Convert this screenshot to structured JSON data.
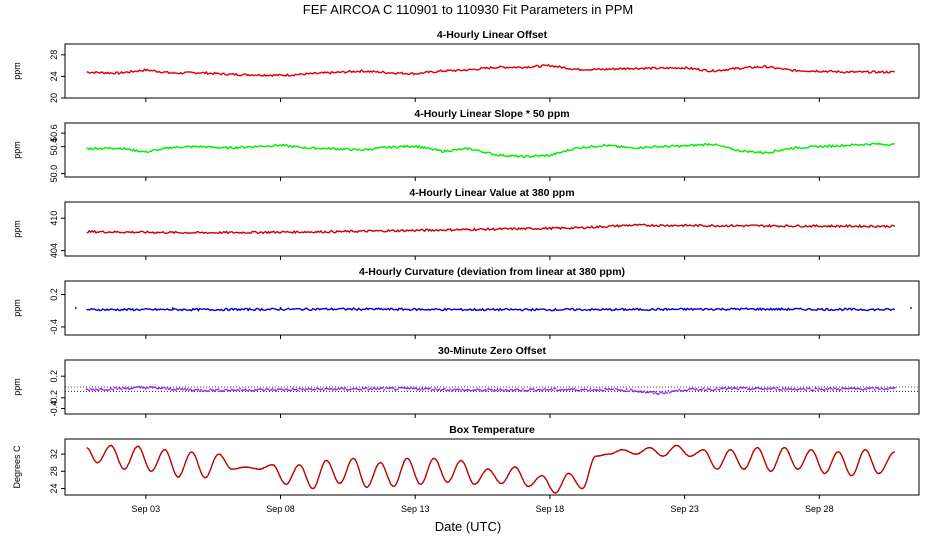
{
  "title": "FEF   AIRCOA C   110901 to 110930   Fit Parameters in PPM",
  "xlabel": "Date (UTC)",
  "chart_data": [
    {
      "type": "line",
      "title": "4-Hourly Linear Offset",
      "ylabel": "ppm",
      "ylim": [
        20,
        30
      ],
      "yticks": [
        "20",
        "24",
        "28"
      ],
      "color": "#dd0000",
      "xlim_days": [
        0,
        31.7
      ],
      "series": [
        {
          "name": "offset",
          "x": [
            0.8,
            2,
            3,
            4,
            5,
            6,
            8,
            10,
            11,
            12,
            13,
            14,
            15,
            16,
            17,
            18,
            19,
            20,
            21,
            22,
            23,
            24,
            25,
            26,
            27,
            28,
            29,
            30,
            30.8
          ],
          "values": [
            24.8,
            24.6,
            25.2,
            24.6,
            24.7,
            24.4,
            24.2,
            24.7,
            25.0,
            24.7,
            24.5,
            25.0,
            25.2,
            25.7,
            25.7,
            26.0,
            25.3,
            25.3,
            25.5,
            25.5,
            25.6,
            25.0,
            25.5,
            25.8,
            25.1,
            25.0,
            24.8,
            24.8,
            24.8
          ]
        }
      ]
    },
    {
      "type": "line",
      "title": "4-Hourly Linear Slope * 50 ppm",
      "ylabel": "ppm",
      "ylim": [
        49.95,
        50.75
      ],
      "yticks": [
        "50.0",
        "50.4",
        "50.6"
      ],
      "color": "#00ee00",
      "xlim_days": [
        0,
        31.7
      ],
      "series": [
        {
          "name": "slope",
          "x": [
            0.8,
            2,
            3,
            4,
            5,
            6,
            7,
            8,
            9,
            10,
            11,
            12,
            13,
            14,
            15,
            16,
            17,
            18,
            19,
            20,
            21,
            22,
            23,
            24,
            25,
            26,
            27,
            28,
            29,
            30,
            30.8
          ],
          "values": [
            50.37,
            50.38,
            50.32,
            50.39,
            50.4,
            50.38,
            50.4,
            50.42,
            50.38,
            50.37,
            50.35,
            50.39,
            50.41,
            50.33,
            50.37,
            50.28,
            50.25,
            50.27,
            50.38,
            50.42,
            50.38,
            50.4,
            50.41,
            50.44,
            50.34,
            50.31,
            50.38,
            50.4,
            50.42,
            50.44,
            50.43
          ]
        }
      ]
    },
    {
      "type": "line",
      "title": "4-Hourly Linear Value at 380 ppm",
      "ylabel": "ppm",
      "ylim": [
        403,
        413
      ],
      "yticks": [
        "404",
        "410"
      ],
      "color": "#cc0000",
      "xlim_days": [
        0,
        31.7
      ],
      "series": [
        {
          "name": "value380",
          "x": [
            0.8,
            5,
            10,
            15,
            19,
            21,
            25,
            30.8
          ],
          "values": [
            407.5,
            407.3,
            407.5,
            407.9,
            408.2,
            408.7,
            408.6,
            408.5
          ]
        }
      ]
    },
    {
      "type": "line",
      "title": "4-Hourly Curvature (deviation from linear at 380 ppm)",
      "ylabel": "ppm",
      "ylim": [
        -0.55,
        0.45
      ],
      "yticks": [
        "-0.4",
        "0.2"
      ],
      "color": "#0000cc",
      "xlim_days": [
        0,
        31.7
      ],
      "series": [
        {
          "name": "curvature",
          "x": [
            0.8,
            5,
            10,
            15,
            20,
            25,
            30.8
          ],
          "values": [
            -0.08,
            -0.08,
            -0.07,
            -0.08,
            -0.08,
            -0.07,
            -0.08
          ]
        }
      ]
    },
    {
      "type": "scatter",
      "title": "30-Minute Zero Offset",
      "ylabel": "ppm",
      "ylim": [
        -0.5,
        0.5
      ],
      "yticks": [
        "-0.4",
        "-0.2",
        "0.2"
      ],
      "reference_lines": [
        0.0,
        -0.08
      ],
      "color": "#9922ee",
      "xlim_days": [
        0,
        31.7
      ],
      "series": [
        {
          "name": "zero_offset",
          "x": [
            0.8,
            2,
            3,
            5,
            8,
            10,
            13,
            15,
            18,
            20,
            21,
            22,
            23,
            25,
            28,
            30.8
          ],
          "values": [
            -0.05,
            -0.03,
            -0.01,
            -0.06,
            -0.05,
            -0.04,
            -0.03,
            -0.06,
            -0.05,
            -0.05,
            -0.06,
            -0.12,
            -0.05,
            -0.03,
            -0.04,
            -0.03
          ]
        }
      ]
    },
    {
      "type": "line",
      "title": "Box Temperature",
      "ylabel": "Degrees C",
      "ylim": [
        22.5,
        35.5
      ],
      "yticks": [
        "24",
        "28",
        "32"
      ],
      "color": "#bb0000",
      "xlim_days": [
        0,
        31.7
      ],
      "series": [
        {
          "name": "box_temp",
          "x": [
            0.8,
            1.2,
            1.7,
            2.2,
            2.7,
            3.2,
            3.7,
            4.2,
            4.7,
            5.2,
            5.7,
            6.2,
            6.7,
            7.2,
            7.7,
            8.2,
            8.7,
            9.2,
            9.7,
            10.2,
            10.7,
            11.2,
            11.7,
            12.2,
            12.7,
            13.2,
            13.7,
            14.2,
            14.7,
            15.2,
            15.7,
            16.2,
            16.7,
            17.2,
            17.7,
            18.2,
            18.7,
            19.2,
            19.7,
            20.2,
            20.7,
            21.2,
            21.7,
            22.2,
            22.7,
            23.2,
            23.7,
            24.2,
            24.7,
            25.2,
            25.7,
            26.2,
            26.7,
            27.2,
            27.7,
            28.2,
            28.7,
            29.2,
            29.7,
            30.2,
            30.8
          ],
          "values": [
            33.5,
            30.0,
            34.0,
            28.5,
            33.8,
            28.0,
            33.0,
            26.7,
            32.5,
            26.5,
            32.0,
            28.5,
            29.0,
            28.5,
            29.5,
            25.0,
            29.5,
            24.0,
            30.5,
            25.2,
            31.0,
            24.3,
            30.0,
            24.5,
            31.0,
            25.0,
            31.0,
            25.5,
            30.5,
            25.0,
            28.5,
            25.2,
            29.0,
            24.5,
            27.0,
            23.0,
            27.5,
            24.0,
            31.5,
            32.0,
            33.0,
            32.0,
            33.5,
            31.5,
            34.0,
            31.5,
            33.0,
            28.5,
            33.0,
            28.5,
            33.5,
            28.0,
            33.5,
            28.5,
            33.0,
            27.5,
            32.5,
            27.0,
            33.0,
            27.5,
            32.5
          ]
        }
      ]
    }
  ],
  "x_ticks": [
    {
      "label": "Sep 03",
      "day": 3
    },
    {
      "label": "Sep 08",
      "day": 8
    },
    {
      "label": "Sep 13",
      "day": 13
    },
    {
      "label": "Sep 18",
      "day": 18
    },
    {
      "label": "Sep 23",
      "day": 23
    },
    {
      "label": "Sep 28",
      "day": 28
    }
  ]
}
